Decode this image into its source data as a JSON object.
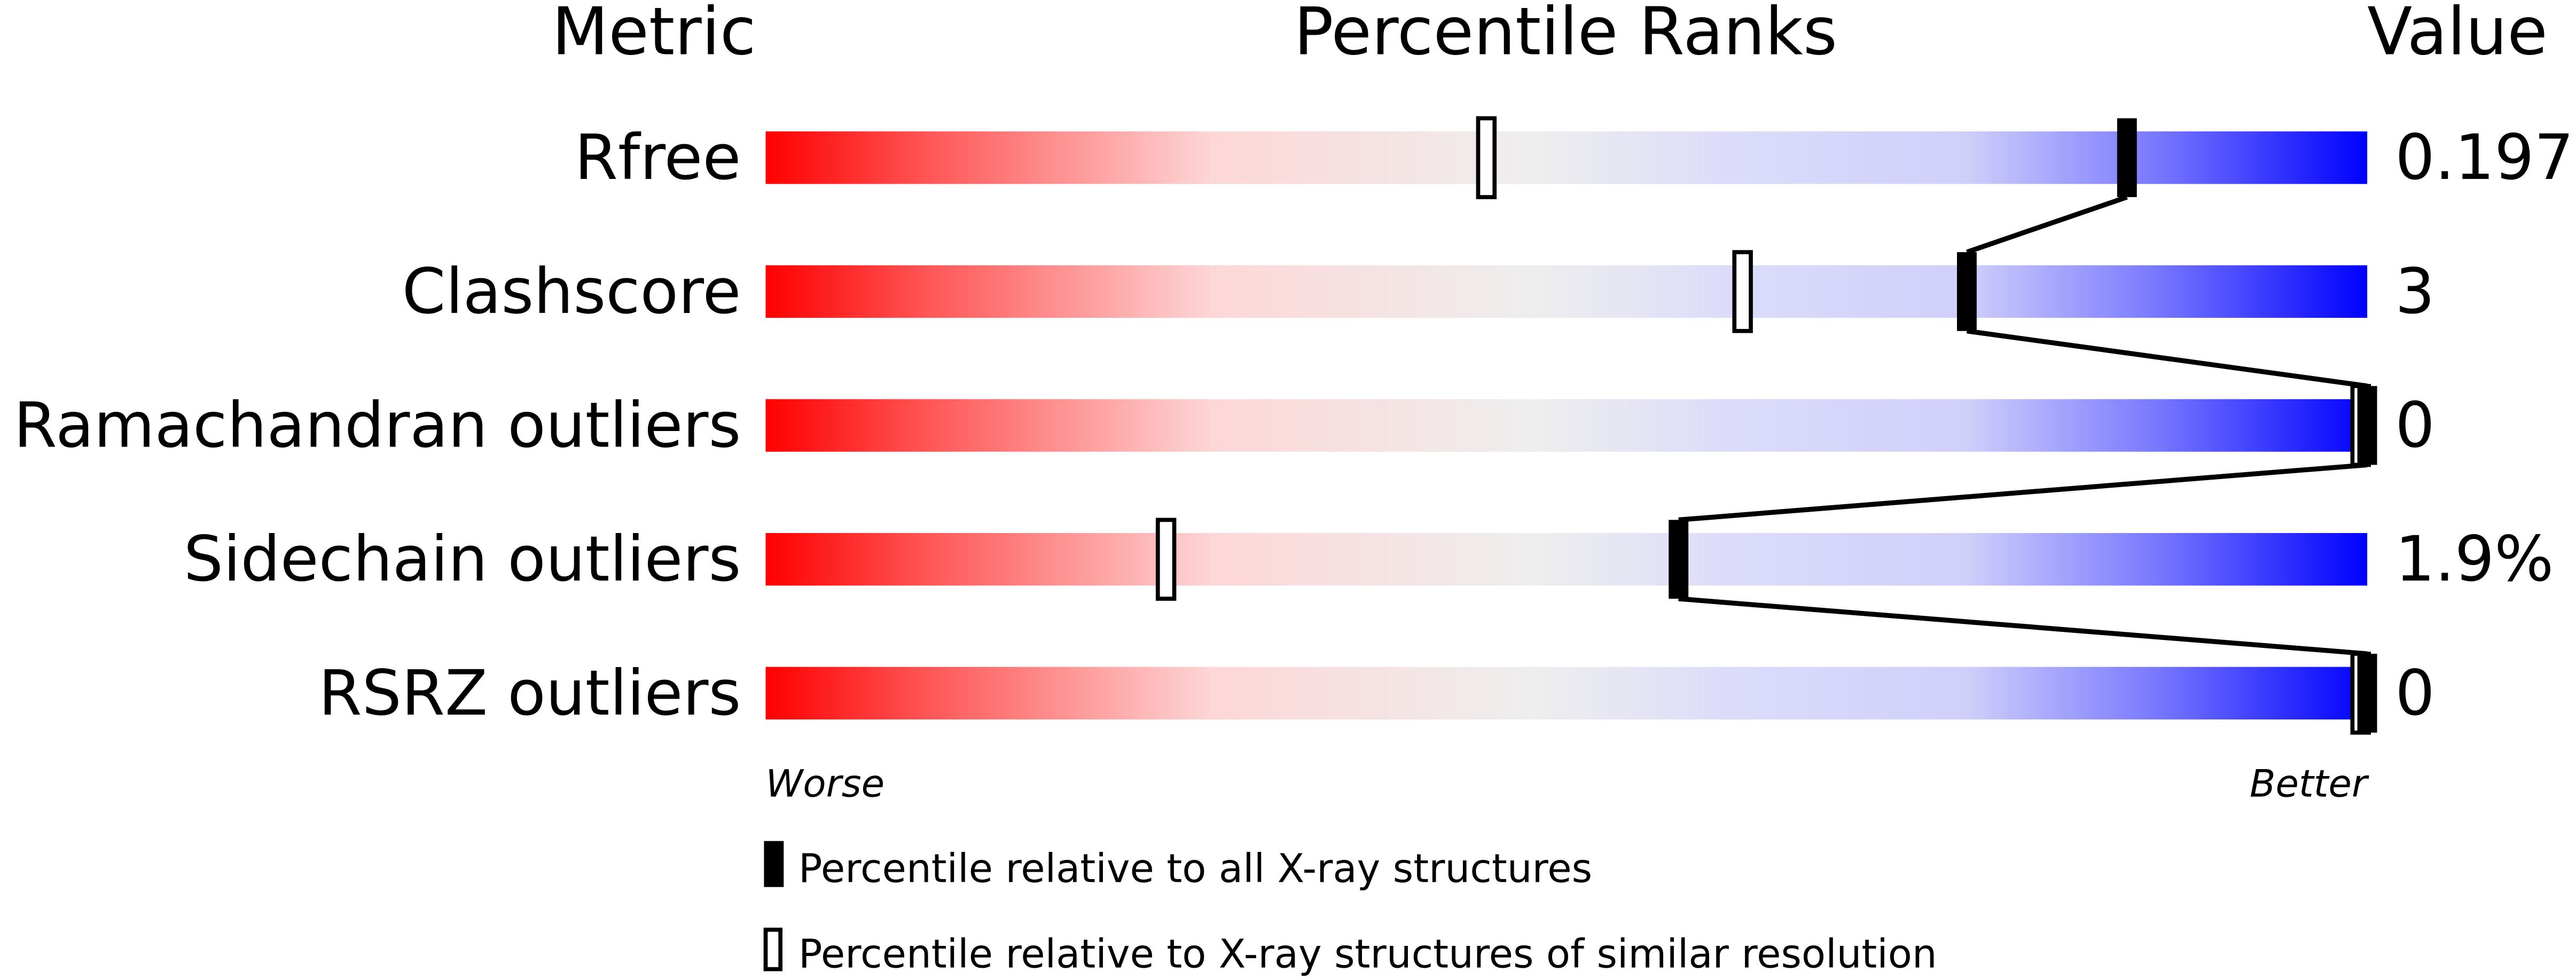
{
  "chart_data": {
    "type": "percentile-bar",
    "headers": {
      "metric": "Metric",
      "percentile": "Percentile Ranks",
      "value": "Value"
    },
    "xlim": [
      0,
      100
    ],
    "metrics": [
      {
        "name": "Rfree",
        "value": "0.197",
        "percentile_all": 85,
        "percentile_similar": 45
      },
      {
        "name": "Clashscore",
        "value": "3",
        "percentile_all": 75,
        "percentile_similar": 61
      },
      {
        "name": "Ramachandran outliers",
        "value": "0",
        "percentile_all": 100,
        "percentile_similar": 100
      },
      {
        "name": "Sidechain outliers",
        "value": "1.9%",
        "percentile_all": 57,
        "percentile_similar": 25
      },
      {
        "name": "RSRZ outliers",
        "value": "0",
        "percentile_all": 100,
        "percentile_similar": 100
      }
    ],
    "axis": {
      "left": "Worse",
      "right": "Better"
    },
    "legend": {
      "all": "Percentile relative to all X-ray structures",
      "similar": "Percentile relative to X-ray structures of similar resolution"
    },
    "colors": {
      "worse": "#ff0000",
      "middle": "#eeeeee",
      "light_blue": "#dcdcfa",
      "better": "#0000ff"
    }
  }
}
